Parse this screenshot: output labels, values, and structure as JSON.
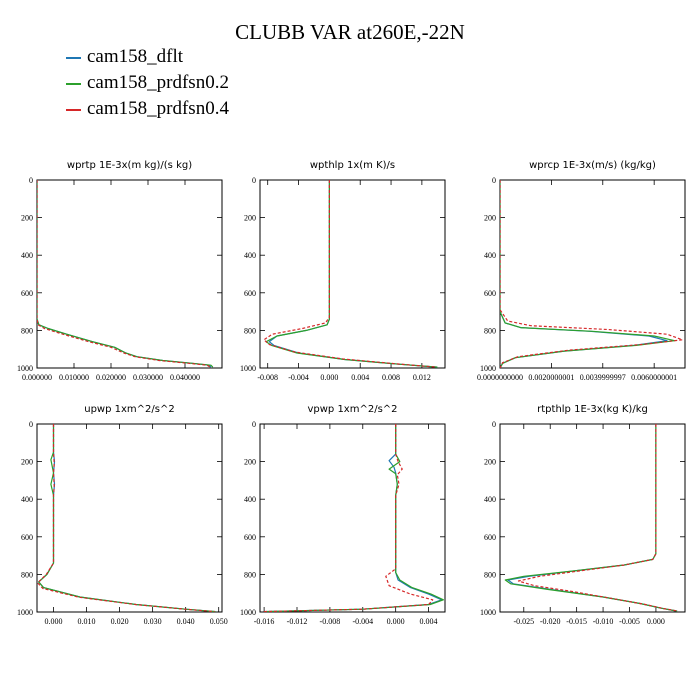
{
  "page_title": "CLUBB VAR at260E,-22N",
  "legend": [
    {
      "label": "cam158_dflt",
      "color": "#1f77b4"
    },
    {
      "label": "cam158_prdfsn0.2",
      "color": "#2ca02c"
    },
    {
      "label": "cam158_prdfsn0.4",
      "color": "#d62728"
    }
  ],
  "chart_data": [
    {
      "type": "line",
      "title": "wprtp   1E-3x(m kg)/(s kg)",
      "xlim": [
        0,
        0.05
      ],
      "ylim": [
        1000,
        0
      ],
      "xticks": [
        "0.000000",
        "0.010000",
        "0.020000",
        "0.030000",
        "0.040000"
      ],
      "xtick_values": [
        0,
        0.01,
        0.02,
        0.03,
        0.04
      ],
      "yticks": [
        "0",
        "200",
        "400",
        "600",
        "800",
        "1000"
      ],
      "ytick_values": [
        0,
        200,
        400,
        600,
        800,
        1000
      ],
      "series": [
        {
          "style": "solid",
          "color": "#1f77b4",
          "x": [
            0,
            0,
            0.0005,
            0.003,
            0.008,
            0.015,
            0.021,
            0.024,
            0.027,
            0.034,
            0.042,
            0.0465,
            0.047
          ],
          "y": [
            0,
            740,
            770,
            790,
            820,
            860,
            890,
            920,
            940,
            960,
            975,
            985,
            995
          ]
        },
        {
          "style": "solid",
          "color": "#2ca02c",
          "x": [
            0,
            0,
            0.0005,
            0.003,
            0.008,
            0.015,
            0.021,
            0.024,
            0.027,
            0.034,
            0.042,
            0.047,
            0.0475
          ],
          "y": [
            0,
            740,
            770,
            790,
            820,
            860,
            890,
            920,
            940,
            960,
            975,
            985,
            995
          ]
        },
        {
          "style": "dashed",
          "color": "#d62728",
          "x": [
            0,
            0,
            0.0003,
            0.002,
            0.007,
            0.014,
            0.02,
            0.0235,
            0.0265,
            0.033,
            0.041,
            0.046,
            0.0468
          ],
          "y": [
            0,
            740,
            770,
            790,
            820,
            860,
            890,
            920,
            940,
            960,
            975,
            985,
            995
          ]
        }
      ]
    },
    {
      "type": "line",
      "title": "wpthlp   1x(m K)/s",
      "xlim": [
        -0.009,
        0.015
      ],
      "ylim": [
        1000,
        0
      ],
      "xticks": [
        "-0.008",
        "-0.004",
        "0.000",
        "0.004",
        "0.008",
        "0.012"
      ],
      "xtick_values": [
        -0.008,
        -0.004,
        0,
        0.004,
        0.008,
        0.012
      ],
      "yticks": [
        "0",
        "200",
        "400",
        "600",
        "800",
        "1000"
      ],
      "ytick_values": [
        0,
        200,
        400,
        600,
        800,
        1000
      ],
      "series": [
        {
          "style": "solid",
          "color": "#1f77b4",
          "x": [
            0,
            0,
            -0.0003,
            -0.003,
            -0.0068,
            -0.0078,
            -0.0072,
            -0.004,
            0.002,
            0.009,
            0.014
          ],
          "y": [
            0,
            740,
            770,
            800,
            830,
            860,
            880,
            920,
            955,
            980,
            995
          ]
        },
        {
          "style": "solid",
          "color": "#2ca02c",
          "x": [
            0,
            0,
            -0.0003,
            -0.003,
            -0.0068,
            -0.0082,
            -0.0075,
            -0.0042,
            0.002,
            0.009,
            0.014
          ],
          "y": [
            0,
            740,
            770,
            800,
            830,
            860,
            880,
            920,
            955,
            980,
            995
          ]
        },
        {
          "style": "dashed",
          "color": "#d62728",
          "x": [
            0,
            0,
            -0.0005,
            -0.0035,
            -0.0074,
            -0.0085,
            -0.0078,
            -0.0045,
            0.0018,
            0.0088,
            0.0138
          ],
          "y": [
            0,
            730,
            760,
            790,
            820,
            850,
            875,
            915,
            952,
            978,
            995
          ]
        }
      ]
    },
    {
      "type": "line",
      "title": "wprcp   1E-3x(m/s) (kg/kg)",
      "xlim": [
        0,
        0.0072
      ],
      "ylim": [
        1000,
        0
      ],
      "xticks": [
        "0.0000000000",
        "0.0020000001",
        "0.0039999997",
        "0.0060000001"
      ],
      "xtick_values": [
        0,
        0.002,
        0.004,
        0.006
      ],
      "yticks": [
        "0",
        "200",
        "400",
        "600",
        "800",
        "1000"
      ],
      "ytick_values": [
        0,
        200,
        400,
        600,
        800,
        1000
      ],
      "series": [
        {
          "style": "solid",
          "color": "#1f77b4",
          "x": [
            0,
            0,
            0.0002,
            0.0008,
            0.0035,
            0.0058,
            0.0065,
            0.0052,
            0.0025,
            0.0006,
            0.0001,
            0
          ],
          "y": [
            0,
            700,
            760,
            785,
            805,
            830,
            855,
            880,
            910,
            945,
            975,
            1000
          ]
        },
        {
          "style": "solid",
          "color": "#2ca02c",
          "x": [
            0,
            0,
            0.0002,
            0.0008,
            0.0036,
            0.006,
            0.0068,
            0.0053,
            0.0025,
            0.0006,
            0.0001,
            0
          ],
          "y": [
            0,
            700,
            760,
            785,
            805,
            830,
            855,
            880,
            910,
            945,
            975,
            1000
          ]
        },
        {
          "style": "dashed",
          "color": "#d62728",
          "x": [
            0,
            0,
            0.0003,
            0.0012,
            0.0042,
            0.0065,
            0.0071,
            0.0055,
            0.0027,
            0.0007,
            0.0001,
            0
          ],
          "y": [
            0,
            690,
            750,
            775,
            795,
            820,
            850,
            875,
            905,
            940,
            972,
            1000
          ]
        }
      ]
    },
    {
      "type": "line",
      "title": "upwp   1xm^2/s^2",
      "xlim": [
        -0.005,
        0.051
      ],
      "ylim": [
        1000,
        0
      ],
      "xticks": [
        "0.000",
        "0.010",
        "0.020",
        "0.030",
        "0.040",
        "0.050"
      ],
      "xtick_values": [
        0,
        0.01,
        0.02,
        0.03,
        0.04,
        0.05
      ],
      "yticks": [
        "0",
        "200",
        "400",
        "600",
        "800",
        "1000"
      ],
      "ytick_values": [
        0,
        200,
        400,
        600,
        800,
        1000
      ],
      "series": [
        {
          "style": "solid",
          "color": "#1f77b4",
          "x": [
            0,
            0,
            0.0003,
            0,
            0.0003,
            0,
            0,
            -0.002,
            -0.0045,
            -0.003,
            0.008,
            0.025,
            0.04,
            0.049
          ],
          "y": [
            0,
            150,
            200,
            260,
            320,
            380,
            740,
            800,
            840,
            870,
            920,
            960,
            985,
            998
          ]
        },
        {
          "style": "solid",
          "color": "#2ca02c",
          "x": [
            0,
            0,
            -0.0008,
            0,
            -0.0008,
            0,
            0,
            -0.002,
            -0.0045,
            -0.003,
            0.008,
            0.025,
            0.04,
            0.049
          ],
          "y": [
            0,
            150,
            190,
            260,
            320,
            380,
            740,
            800,
            840,
            870,
            920,
            960,
            985,
            998
          ]
        },
        {
          "style": "dashed",
          "color": "#d62728",
          "x": [
            0,
            0,
            0.0002,
            0,
            0.0002,
            0,
            0,
            -0.0022,
            -0.0048,
            -0.0032,
            0.0078,
            0.0248,
            0.0398,
            0.0488
          ],
          "y": [
            0,
            150,
            210,
            260,
            330,
            380,
            740,
            800,
            845,
            875,
            922,
            960,
            985,
            998
          ]
        }
      ]
    },
    {
      "type": "line",
      "title": "vpwp   1xm^2/s^2",
      "xlim": [
        -0.0165,
        0.006
      ],
      "ylim": [
        1000,
        0
      ],
      "xticks": [
        "-0.016",
        "-0.012",
        "-0.008",
        "-0.004",
        "0.000",
        "0.004"
      ],
      "xtick_values": [
        -0.016,
        -0.012,
        -0.008,
        -0.004,
        0,
        0.004
      ],
      "yticks": [
        "0",
        "200",
        "400",
        "600",
        "800",
        "1000"
      ],
      "ytick_values": [
        0,
        200,
        400,
        600,
        800,
        1000
      ],
      "series": [
        {
          "style": "solid",
          "color": "#1f77b4",
          "x": [
            0,
            0,
            -0.0008,
            -0.0002,
            0,
            0.0002,
            0,
            0,
            0.0003,
            0.0018,
            0.004,
            0.0056,
            0.004,
            -0.004,
            -0.016
          ],
          "y": [
            0,
            160,
            195,
            230,
            260,
            320,
            380,
            790,
            830,
            870,
            905,
            935,
            960,
            985,
            998
          ]
        },
        {
          "style": "solid",
          "color": "#2ca02c",
          "x": [
            0,
            0,
            0.0005,
            -0.0008,
            0,
            0.0002,
            0,
            0,
            0.0005,
            0.002,
            0.0043,
            0.0058,
            0.0042,
            -0.004,
            -0.016
          ],
          "y": [
            0,
            160,
            200,
            240,
            265,
            320,
            380,
            790,
            830,
            870,
            905,
            935,
            960,
            985,
            998
          ]
        },
        {
          "style": "dashed",
          "color": "#d62728",
          "x": [
            0,
            0,
            0.0003,
            0.0008,
            0.0002,
            0.0004,
            0,
            0,
            -0.0012,
            -0.0008,
            0.0018,
            0.0045,
            0.004,
            -0.004,
            -0.016
          ],
          "y": [
            0,
            160,
            200,
            240,
            270,
            320,
            380,
            770,
            810,
            860,
            905,
            935,
            960,
            985,
            998
          ]
        }
      ]
    },
    {
      "type": "line",
      "title": "rtpthlp   1E-3x(kg K)/kg",
      "xlim": [
        -0.0295,
        0.0055
      ],
      "ylim": [
        1000,
        0
      ],
      "xticks": [
        "-0.025",
        "-0.020",
        "-0.015",
        "-0.010",
        "-0.005",
        "0.000"
      ],
      "xtick_values": [
        -0.025,
        -0.02,
        -0.015,
        -0.01,
        -0.005,
        0
      ],
      "yticks": [
        "0",
        "200",
        "400",
        "600",
        "800",
        "1000"
      ],
      "ytick_values": [
        0,
        200,
        400,
        600,
        800,
        1000
      ],
      "series": [
        {
          "style": "solid",
          "color": "#1f77b4",
          "x": [
            0,
            0,
            -0.0006,
            -0.006,
            -0.015,
            -0.024,
            -0.028,
            -0.027,
            -0.02,
            -0.01,
            -0.003,
            0.001,
            0.004
          ],
          "y": [
            0,
            690,
            720,
            750,
            780,
            810,
            830,
            850,
            880,
            920,
            955,
            980,
            995
          ]
        },
        {
          "style": "solid",
          "color": "#2ca02c",
          "x": [
            0,
            0,
            -0.0006,
            -0.006,
            -0.015,
            -0.025,
            -0.0285,
            -0.0275,
            -0.0205,
            -0.01,
            -0.003,
            0.001,
            0.004
          ],
          "y": [
            0,
            690,
            720,
            750,
            780,
            810,
            830,
            850,
            880,
            920,
            955,
            980,
            995
          ]
        },
        {
          "style": "dashed",
          "color": "#d62728",
          "x": [
            0,
            0,
            -0.0006,
            -0.006,
            -0.014,
            -0.022,
            -0.026,
            -0.023,
            -0.016,
            -0.008,
            -0.002,
            0.0015,
            0.0042
          ],
          "y": [
            0,
            690,
            720,
            750,
            780,
            810,
            835,
            860,
            890,
            930,
            960,
            982,
            995
          ]
        }
      ]
    }
  ]
}
